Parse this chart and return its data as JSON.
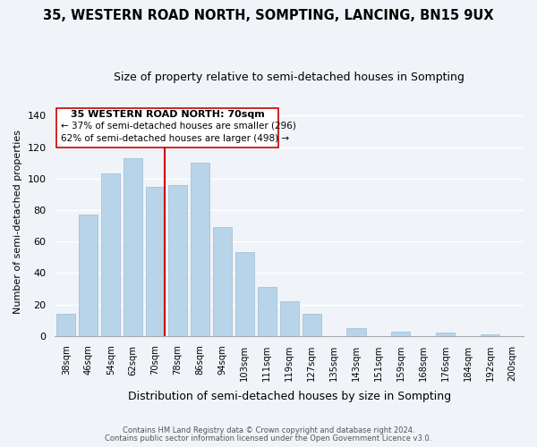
{
  "title": "35, WESTERN ROAD NORTH, SOMPTING, LANCING, BN15 9UX",
  "subtitle": "Size of property relative to semi-detached houses in Sompting",
  "xlabel": "Distribution of semi-detached houses by size in Sompting",
  "ylabel": "Number of semi-detached properties",
  "bar_labels": [
    "38sqm",
    "46sqm",
    "54sqm",
    "62sqm",
    "70sqm",
    "78sqm",
    "86sqm",
    "94sqm",
    "103sqm",
    "111sqm",
    "119sqm",
    "127sqm",
    "135sqm",
    "143sqm",
    "151sqm",
    "159sqm",
    "168sqm",
    "176sqm",
    "184sqm",
    "192sqm",
    "200sqm"
  ],
  "bar_values": [
    14,
    77,
    103,
    113,
    95,
    96,
    110,
    69,
    53,
    31,
    22,
    14,
    0,
    5,
    0,
    3,
    0,
    2,
    0,
    1,
    0
  ],
  "bar_color": "#b8d4e8",
  "highlight_bar_index": 4,
  "highlight_line_color": "#cc0000",
  "ylim": [
    0,
    145
  ],
  "yticks": [
    0,
    20,
    40,
    60,
    80,
    100,
    120,
    140
  ],
  "annotation_title": "35 WESTERN ROAD NORTH: 70sqm",
  "annotation_line1": "← 37% of semi-detached houses are smaller (296)",
  "annotation_line2": "62% of semi-detached houses are larger (498) →",
  "footer1": "Contains HM Land Registry data © Crown copyright and database right 2024.",
  "footer2": "Contains public sector information licensed under the Open Government Licence v3.0.",
  "background_color": "#f0f4f8",
  "grid_color": "#ffffff",
  "title_fontsize": 10.5,
  "subtitle_fontsize": 9
}
